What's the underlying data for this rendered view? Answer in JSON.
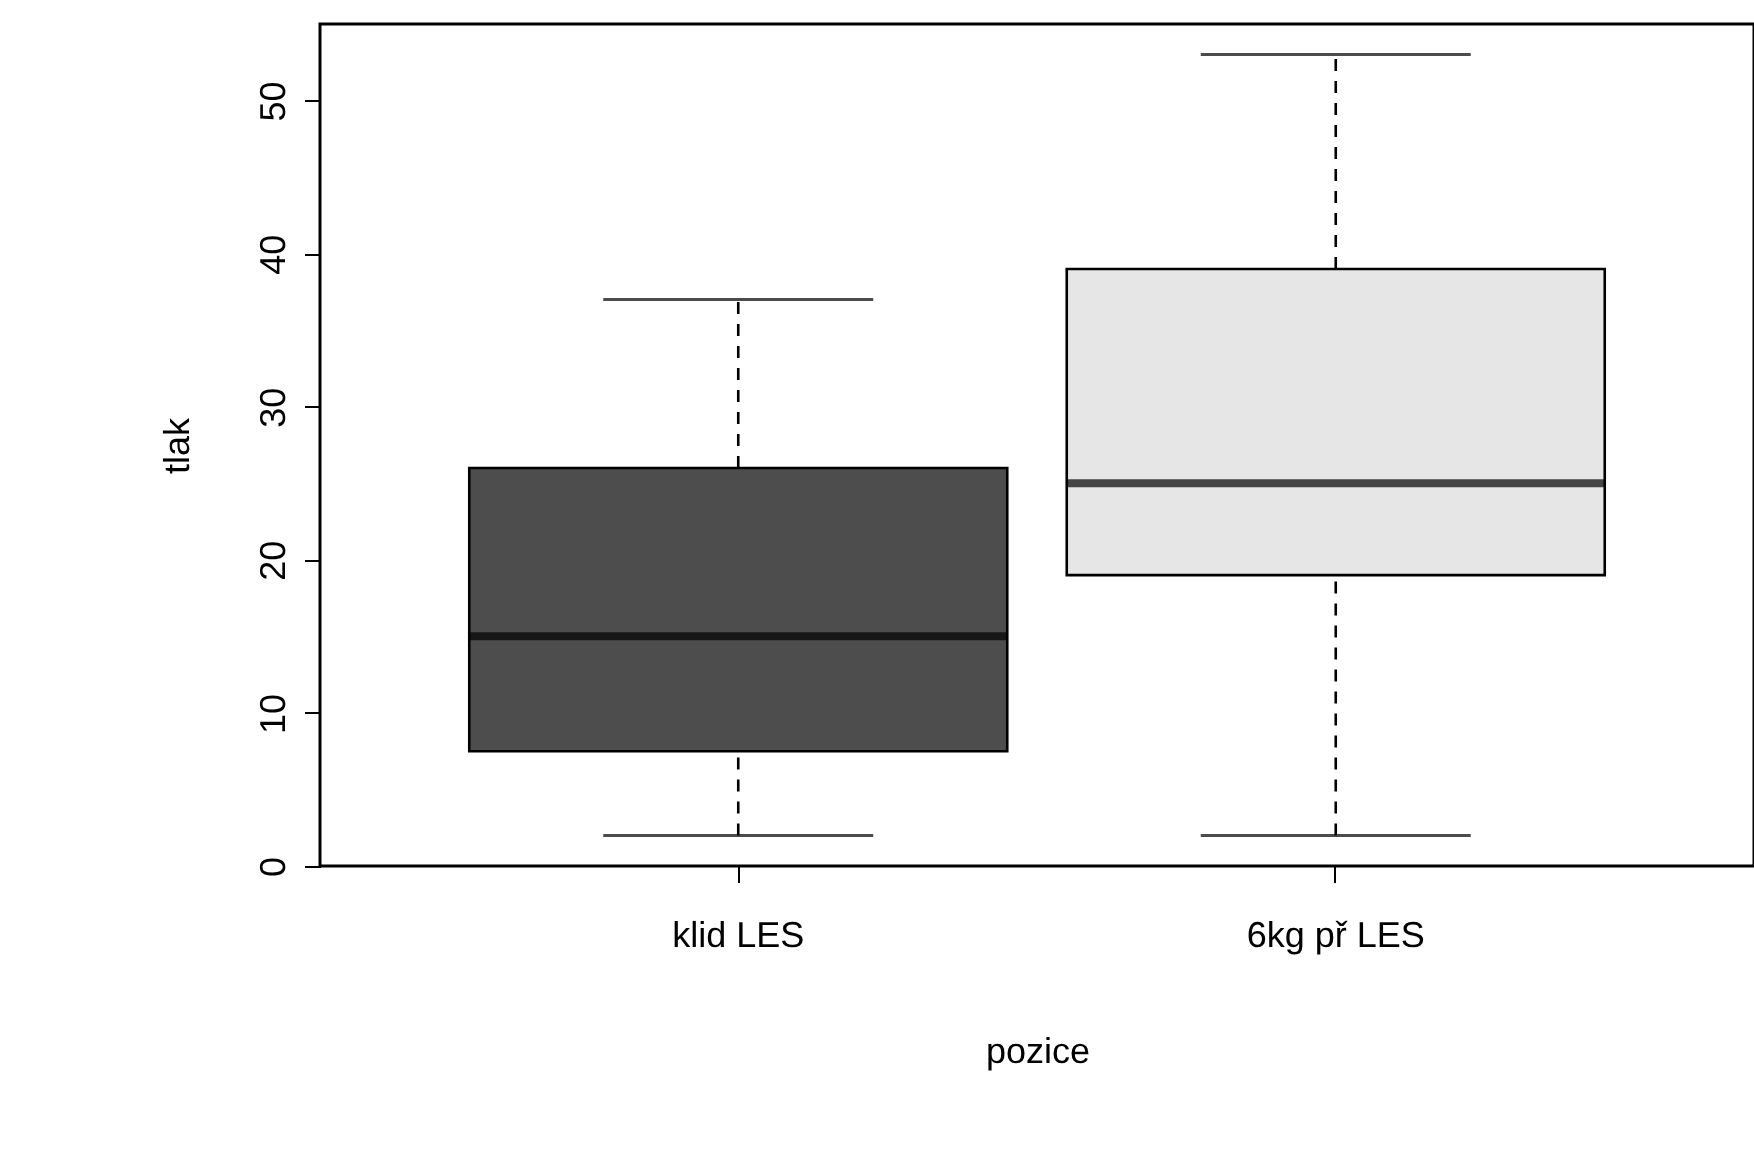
{
  "chart_data": {
    "type": "box",
    "xlabel": "pozice",
    "ylabel": "tlak",
    "categories": [
      "klid LES",
      "6kg př LES"
    ],
    "boxes": [
      {
        "low": 2,
        "q1": 7.5,
        "median": 15,
        "q3": 26,
        "high": 37
      },
      {
        "low": 2,
        "q1": 19,
        "median": 25,
        "q3": 39,
        "high": 53
      }
    ],
    "colors": [
      "#4d4d4d",
      "#e6e6e6"
    ],
    "ylim": [
      0,
      55
    ],
    "yticks": [
      0,
      10,
      20,
      30,
      40,
      50
    ]
  }
}
